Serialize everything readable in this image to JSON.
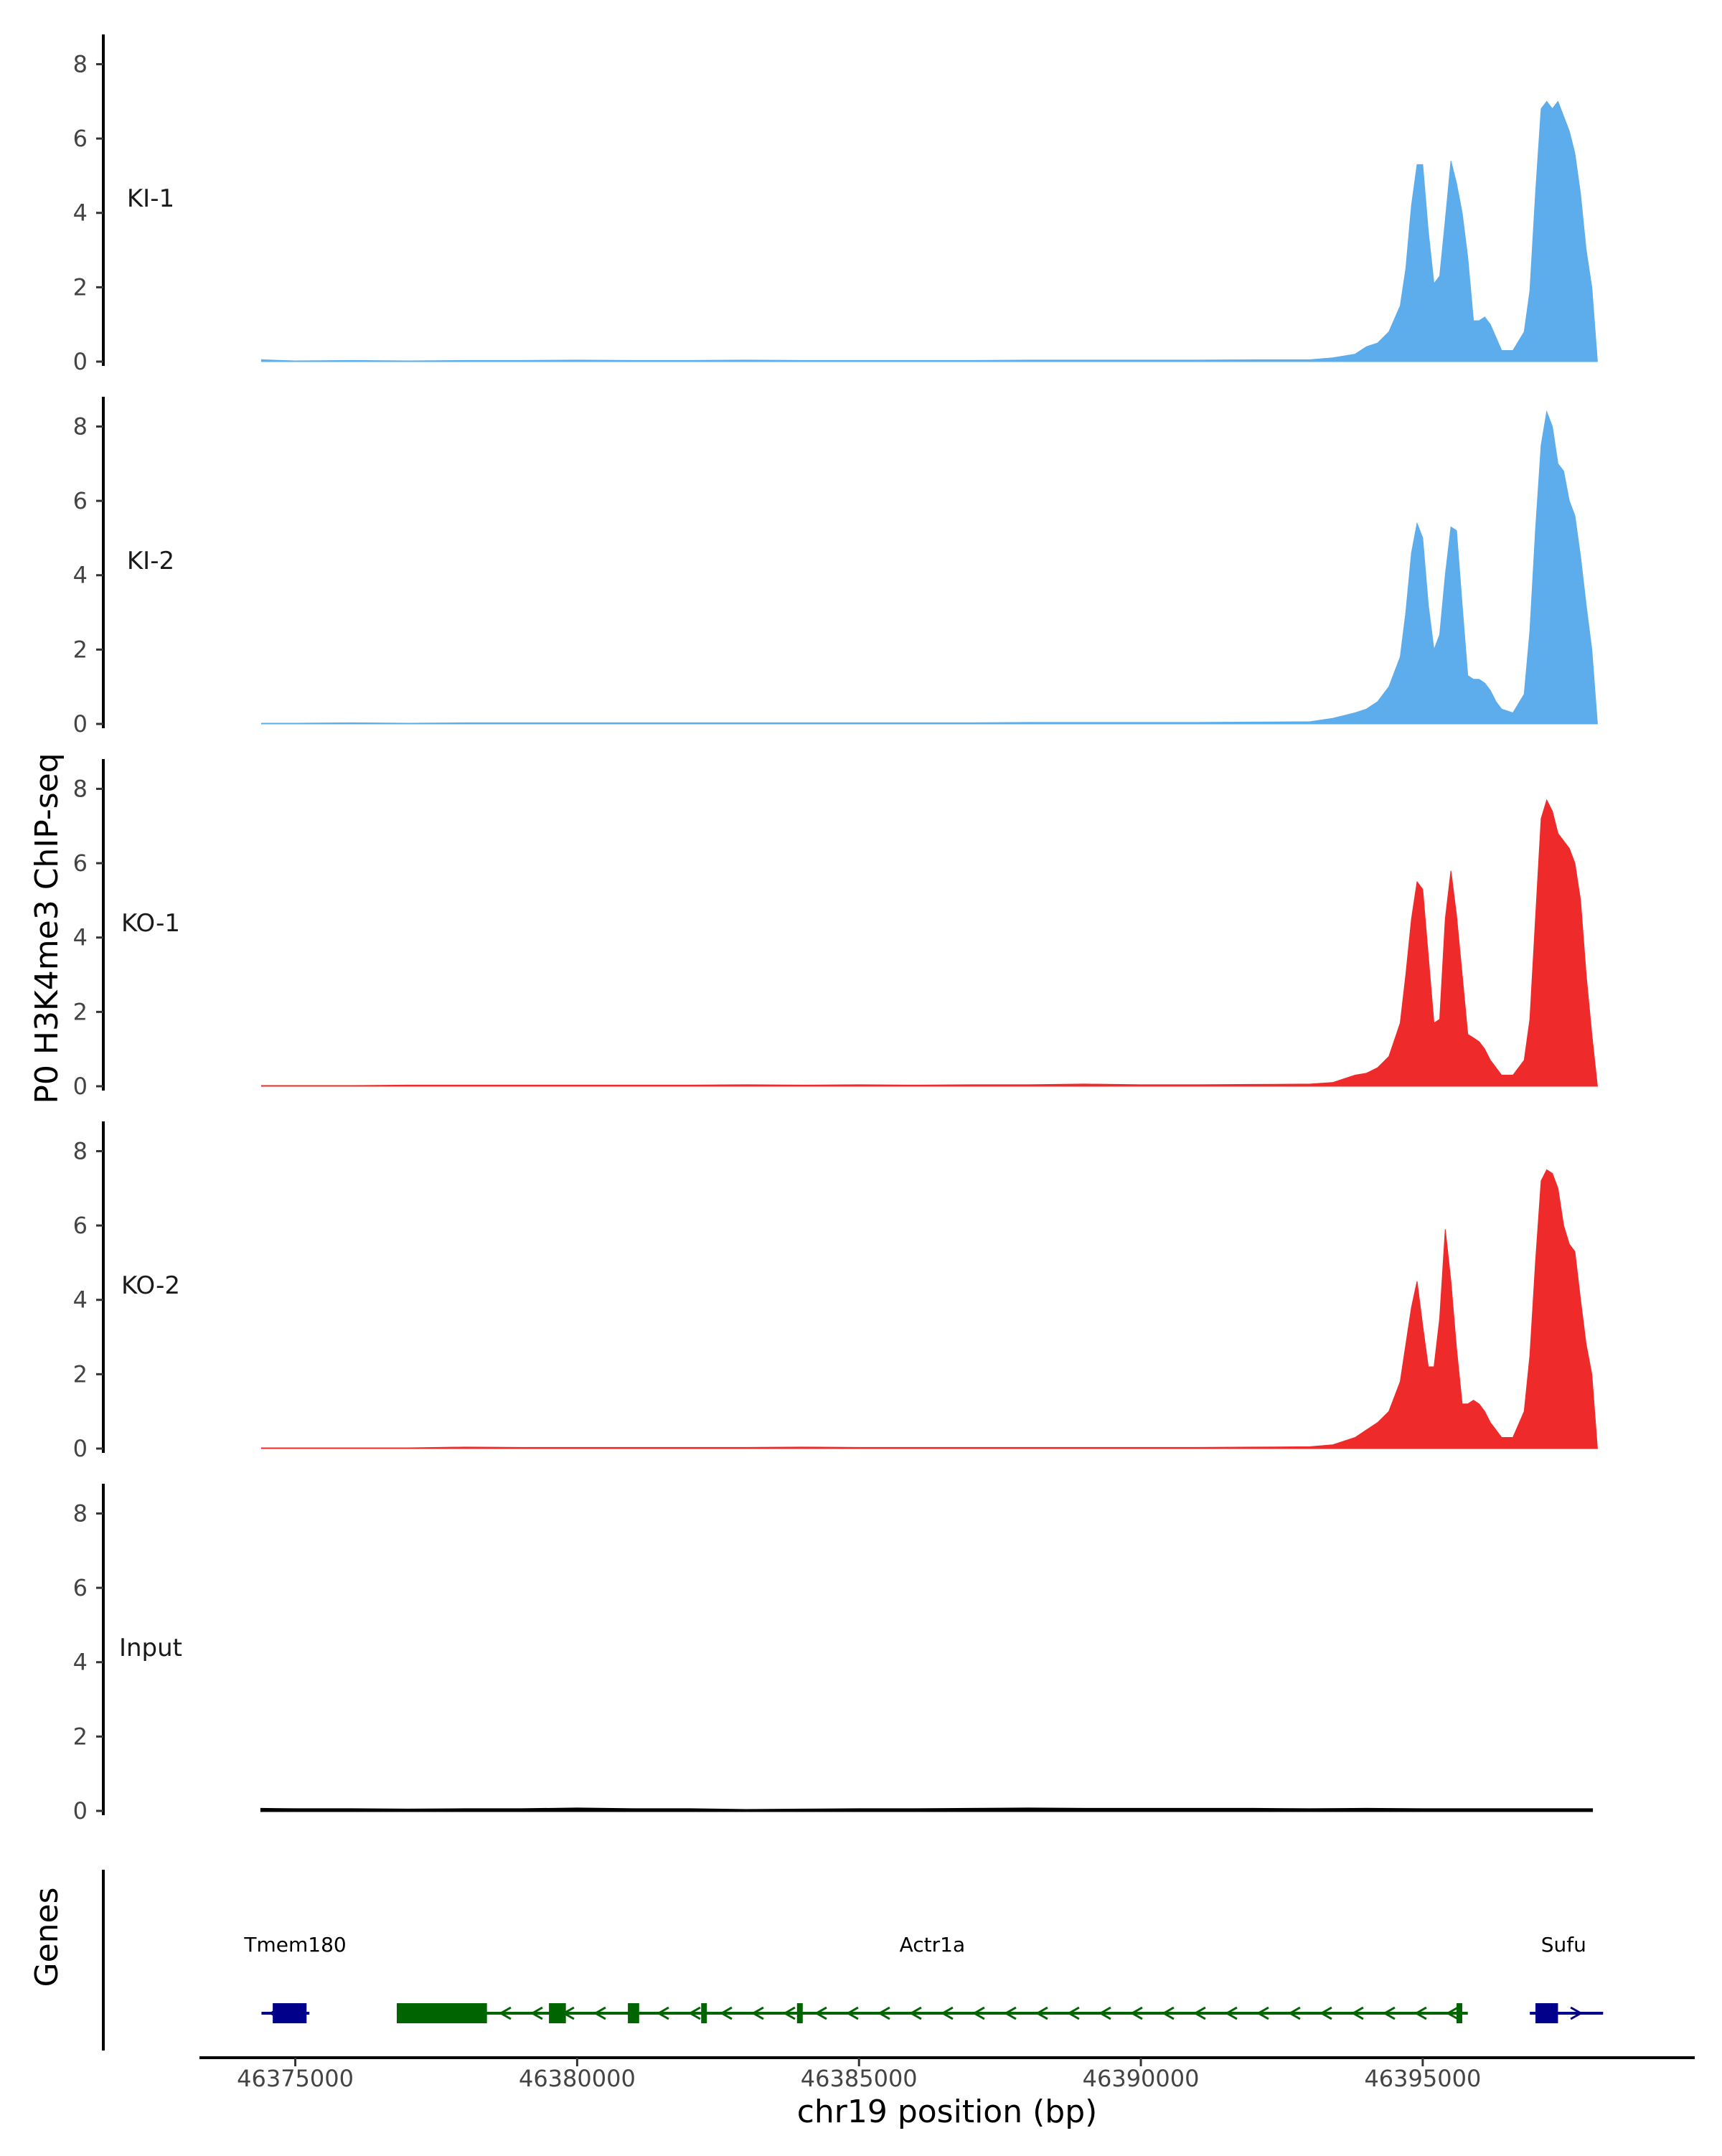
{
  "chart_data": {
    "type": "area",
    "title": "",
    "xlabel": "chr19 position (bp)",
    "ylabel": "P0 H3K4me3 ChIP-seq",
    "genes_label": "Genes",
    "xlim": [
      46373300,
      46399800
    ],
    "ylim": [
      0,
      8.8
    ],
    "x_ticks": [
      46375000,
      46380000,
      46385000,
      46390000,
      46395000
    ],
    "x_tick_labels": [
      "46375000",
      "46380000",
      "46385000",
      "46390000",
      "46395000"
    ],
    "y_ticks": [
      0,
      2,
      4,
      6,
      8
    ],
    "y_tick_labels": [
      "0",
      "2",
      "4",
      "6",
      "8"
    ],
    "grid": false,
    "legend": "none",
    "colors": {
      "KI": "#5daceb",
      "KO": "#ee2a2a",
      "Input": "#000000",
      "Tmem180": "#00008b",
      "Actr1a": "#006400",
      "Sufu": "#00008b"
    },
    "series": [
      {
        "name": "KI-1",
        "color": "#5daceb",
        "x": [
          46374400,
          46375000,
          46376000,
          46377000,
          46378000,
          46379000,
          46380000,
          46381000,
          46382000,
          46383000,
          46384000,
          46385000,
          46386000,
          46387000,
          46388000,
          46389000,
          46390000,
          46391000,
          46392000,
          46393000,
          46393400,
          46393800,
          46394000,
          46394200,
          46394400,
          46394600,
          46394700,
          46394800,
          46394900,
          46395000,
          46395100,
          46395200,
          46395300,
          46395400,
          46395500,
          46395600,
          46395700,
          46395800,
          46395900,
          46396000,
          46396100,
          46396200,
          46396400,
          46396600,
          46396800,
          46396900,
          46397000,
          46397100,
          46397200,
          46397300,
          46397400,
          46397500,
          46397600,
          46397700,
          46397800,
          46397900,
          46398000,
          46398100
        ],
        "values": [
          0.05,
          0.02,
          0.03,
          0.02,
          0.03,
          0.03,
          0.04,
          0.03,
          0.03,
          0.04,
          0.03,
          0.03,
          0.03,
          0.03,
          0.04,
          0.04,
          0.04,
          0.04,
          0.05,
          0.05,
          0.1,
          0.2,
          0.4,
          0.5,
          0.8,
          1.5,
          2.5,
          4.2,
          5.3,
          5.3,
          3.5,
          2.1,
          2.3,
          3.8,
          5.4,
          4.8,
          4.0,
          2.8,
          1.1,
          1.1,
          1.2,
          1.0,
          0.3,
          0.3,
          0.8,
          1.9,
          4.5,
          6.8,
          7.0,
          6.8,
          7.0,
          6.6,
          6.2,
          5.6,
          4.5,
          3.0,
          2.0,
          0
        ]
      },
      {
        "name": "KI-2",
        "color": "#5daceb",
        "x": [
          46374400,
          46375000,
          46376000,
          46377000,
          46378000,
          46379000,
          46380000,
          46381000,
          46382000,
          46383000,
          46384000,
          46385000,
          46386000,
          46387000,
          46388000,
          46389000,
          46390000,
          46391000,
          46392000,
          46393000,
          46393400,
          46393800,
          46394000,
          46394200,
          46394400,
          46394600,
          46394700,
          46394800,
          46394900,
          46395000,
          46395100,
          46395200,
          46395300,
          46395400,
          46395500,
          46395600,
          46395700,
          46395800,
          46395900,
          46396000,
          46396100,
          46396200,
          46396300,
          46396400,
          46396600,
          46396800,
          46396900,
          46397000,
          46397100,
          46397200,
          46397300,
          46397400,
          46397500,
          46397600,
          46397700,
          46397800,
          46397900,
          46398000,
          46398100
        ],
        "values": [
          0.02,
          0.02,
          0.03,
          0.02,
          0.03,
          0.03,
          0.03,
          0.03,
          0.03,
          0.03,
          0.03,
          0.03,
          0.03,
          0.03,
          0.04,
          0.04,
          0.04,
          0.04,
          0.05,
          0.06,
          0.15,
          0.3,
          0.4,
          0.6,
          1.0,
          1.8,
          3.0,
          4.6,
          5.4,
          5.0,
          3.2,
          2.0,
          2.4,
          4.0,
          5.3,
          5.2,
          3.2,
          1.3,
          1.2,
          1.2,
          1.1,
          0.9,
          0.6,
          0.4,
          0.3,
          0.8,
          2.5,
          5.2,
          7.5,
          8.4,
          8.0,
          7.0,
          6.8,
          6.0,
          5.6,
          4.5,
          3.2,
          2.0,
          0
        ]
      },
      {
        "name": "KO-1",
        "color": "#ee2a2a",
        "x": [
          46374400,
          46375000,
          46376000,
          46377000,
          46378000,
          46379000,
          46380000,
          46381000,
          46382000,
          46383000,
          46384000,
          46385000,
          46386000,
          46387000,
          46388000,
          46389000,
          46390000,
          46391000,
          46392000,
          46393000,
          46393400,
          46393800,
          46394000,
          46394200,
          46394400,
          46394600,
          46394700,
          46394800,
          46394900,
          46395000,
          46395100,
          46395200,
          46395300,
          46395400,
          46395500,
          46395600,
          46395700,
          46395800,
          46395900,
          46396000,
          46396100,
          46396200,
          46396400,
          46396600,
          46396800,
          46396900,
          46397000,
          46397100,
          46397200,
          46397300,
          46397400,
          46397500,
          46397600,
          46397700,
          46397800,
          46397900,
          46398000,
          46398100
        ],
        "values": [
          0.02,
          0.02,
          0.02,
          0.03,
          0.03,
          0.03,
          0.03,
          0.03,
          0.03,
          0.04,
          0.03,
          0.04,
          0.03,
          0.04,
          0.04,
          0.06,
          0.04,
          0.04,
          0.05,
          0.06,
          0.1,
          0.3,
          0.35,
          0.5,
          0.8,
          1.7,
          3.0,
          4.5,
          5.5,
          5.3,
          3.5,
          1.7,
          1.8,
          4.5,
          5.8,
          4.6,
          3.0,
          1.4,
          1.3,
          1.2,
          1.0,
          0.7,
          0.3,
          0.3,
          0.7,
          1.8,
          4.5,
          7.2,
          7.7,
          7.4,
          6.8,
          6.6,
          6.4,
          6.0,
          5.0,
          3.0,
          1.4,
          0
        ]
      },
      {
        "name": "KO-2",
        "color": "#ee2a2a",
        "x": [
          46374400,
          46375000,
          46376000,
          46377000,
          46378000,
          46379000,
          46380000,
          46381000,
          46382000,
          46383000,
          46384000,
          46385000,
          46386000,
          46387000,
          46388000,
          46389000,
          46390000,
          46391000,
          46392000,
          46393000,
          46393400,
          46393800,
          46394000,
          46394200,
          46394400,
          46394600,
          46394700,
          46394800,
          46394900,
          46395000,
          46395100,
          46395200,
          46395300,
          46395400,
          46395500,
          46395600,
          46395700,
          46395800,
          46395900,
          46396000,
          46396100,
          46396200,
          46396400,
          46396600,
          46396800,
          46396900,
          46397000,
          46397100,
          46397200,
          46397300,
          46397400,
          46397500,
          46397600,
          46397700,
          46397800,
          46397900,
          46398000,
          46398100
        ],
        "values": [
          0.02,
          0.02,
          0.02,
          0.02,
          0.04,
          0.03,
          0.03,
          0.03,
          0.03,
          0.03,
          0.04,
          0.03,
          0.03,
          0.03,
          0.03,
          0.03,
          0.03,
          0.03,
          0.04,
          0.05,
          0.1,
          0.3,
          0.5,
          0.7,
          1.0,
          1.8,
          2.8,
          3.8,
          4.5,
          3.3,
          2.2,
          2.2,
          3.5,
          5.9,
          4.5,
          2.7,
          1.2,
          1.2,
          1.3,
          1.2,
          1.0,
          0.7,
          0.3,
          0.3,
          1.0,
          2.5,
          5.0,
          7.2,
          7.5,
          7.4,
          7.0,
          6.0,
          5.5,
          5.3,
          4.0,
          2.8,
          2.0,
          0
        ]
      },
      {
        "name": "Input",
        "color": "#000000",
        "x": [
          46374400,
          46375000,
          46376000,
          46377000,
          46378000,
          46379000,
          46380000,
          46381000,
          46382000,
          46383000,
          46384000,
          46385000,
          46386000,
          46387000,
          46388000,
          46389000,
          46390000,
          46391000,
          46392000,
          46393000,
          46394000,
          46395000,
          46396000,
          46397000,
          46398000
        ],
        "values": [
          0.05,
          0.04,
          0.04,
          0.03,
          0.04,
          0.04,
          0.06,
          0.04,
          0.04,
          0.02,
          0.03,
          0.04,
          0.04,
          0.05,
          0.06,
          0.05,
          0.05,
          0.05,
          0.05,
          0.04,
          0.05,
          0.04,
          0.04,
          0.04,
          0.04
        ]
      }
    ],
    "genes": [
      {
        "name": "Tmem180",
        "color": "#00008b",
        "strand": "-",
        "start": 46374400,
        "end": 46375250,
        "label_x": 46375000,
        "exons": [
          [
            46374600,
            46375200
          ]
        ]
      },
      {
        "name": "Actr1a",
        "color": "#006400",
        "strand": "-",
        "start": 46376800,
        "end": 46395800,
        "label_x": 46386300,
        "exons": [
          [
            46376800,
            46378400
          ],
          [
            46379500,
            46379800
          ],
          [
            46380900,
            46381100
          ],
          [
            46382200,
            46382300
          ],
          [
            46383900,
            46384000
          ],
          [
            46395600,
            46395700
          ]
        ]
      },
      {
        "name": "Sufu",
        "color": "#00008b",
        "strand": "+",
        "start": 46396900,
        "end": 46398200,
        "label_x": 46397500,
        "exons": [
          [
            46397000,
            46397400
          ]
        ]
      }
    ]
  }
}
